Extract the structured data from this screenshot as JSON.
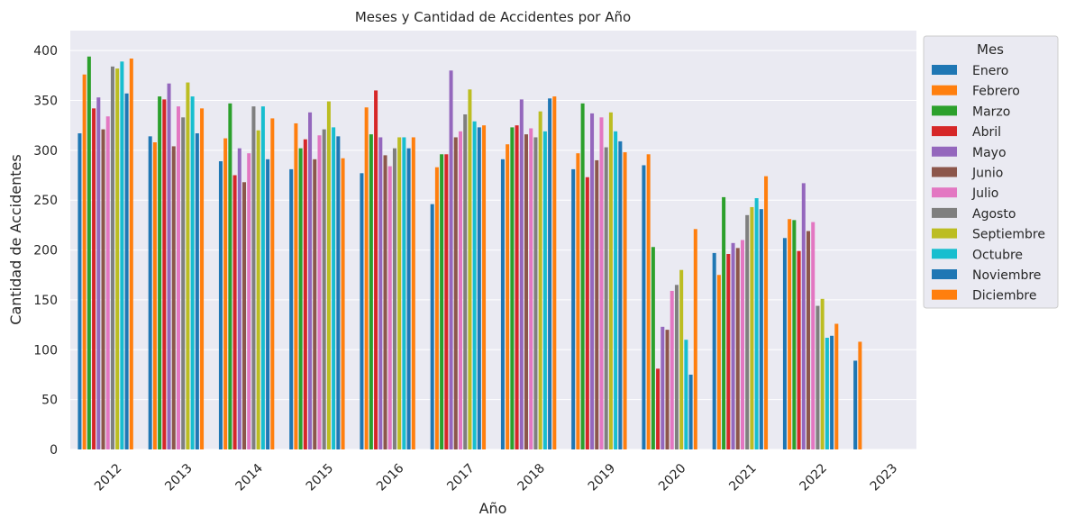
{
  "chart_data": {
    "type": "bar",
    "title": "Meses y Cantidad de Accidentes por Año",
    "xlabel": "Año",
    "ylabel": "Cantidad de Accidentes",
    "ylim": [
      0,
      420
    ],
    "yticks": [
      0,
      50,
      100,
      150,
      200,
      250,
      300,
      350,
      400
    ],
    "grid": true,
    "legend_title": "Mes",
    "legend_position": "outside-right",
    "categories": [
      "2012",
      "2013",
      "2014",
      "2015",
      "2016",
      "2017",
      "2018",
      "2019",
      "2020",
      "2021",
      "2022",
      "2023"
    ],
    "series": [
      {
        "name": "Enero",
        "color": "#1f77b4",
        "values": [
          317,
          314,
          289,
          281,
          277,
          246,
          291,
          281,
          285,
          197,
          212,
          89
        ]
      },
      {
        "name": "Febrero",
        "color": "#ff7f0e",
        "values": [
          376,
          308,
          312,
          327,
          343,
          283,
          306,
          297,
          296,
          175,
          231,
          108
        ]
      },
      {
        "name": "Marzo",
        "color": "#2ca02c",
        "values": [
          394,
          354,
          347,
          302,
          316,
          296,
          323,
          347,
          203,
          253,
          230,
          null
        ]
      },
      {
        "name": "Abril",
        "color": "#d62728",
        "values": [
          342,
          351,
          275,
          311,
          360,
          296,
          325,
          273,
          81,
          196,
          199,
          null
        ]
      },
      {
        "name": "Mayo",
        "color": "#9467bd",
        "values": [
          353,
          367,
          302,
          338,
          313,
          380,
          351,
          337,
          123,
          207,
          267,
          null
        ]
      },
      {
        "name": "Junio",
        "color": "#8c564b",
        "values": [
          321,
          304,
          268,
          291,
          295,
          313,
          316,
          290,
          120,
          202,
          219,
          null
        ]
      },
      {
        "name": "Julio",
        "color": "#e377c2",
        "values": [
          334,
          344,
          297,
          315,
          284,
          319,
          322,
          333,
          159,
          210,
          228,
          null
        ]
      },
      {
        "name": "Agosto",
        "color": "#7f7f7f",
        "values": [
          384,
          333,
          344,
          321,
          302,
          336,
          313,
          303,
          165,
          235,
          144,
          null
        ]
      },
      {
        "name": "Septiembre",
        "color": "#bcbd22",
        "values": [
          382,
          368,
          320,
          349,
          313,
          361,
          339,
          338,
          180,
          243,
          151,
          null
        ]
      },
      {
        "name": "Octubre",
        "color": "#17becf",
        "values": [
          389,
          354,
          344,
          323,
          313,
          329,
          319,
          319,
          110,
          252,
          112,
          null
        ]
      },
      {
        "name": "Noviembre",
        "color": "#1f77b4",
        "values": [
          357,
          317,
          291,
          314,
          302,
          323,
          352,
          309,
          75,
          241,
          114,
          null
        ]
      },
      {
        "name": "Diciembre",
        "color": "#ff7f0e",
        "values": [
          392,
          342,
          332,
          292,
          313,
          325,
          354,
          298,
          221,
          274,
          126,
          null
        ]
      }
    ]
  }
}
